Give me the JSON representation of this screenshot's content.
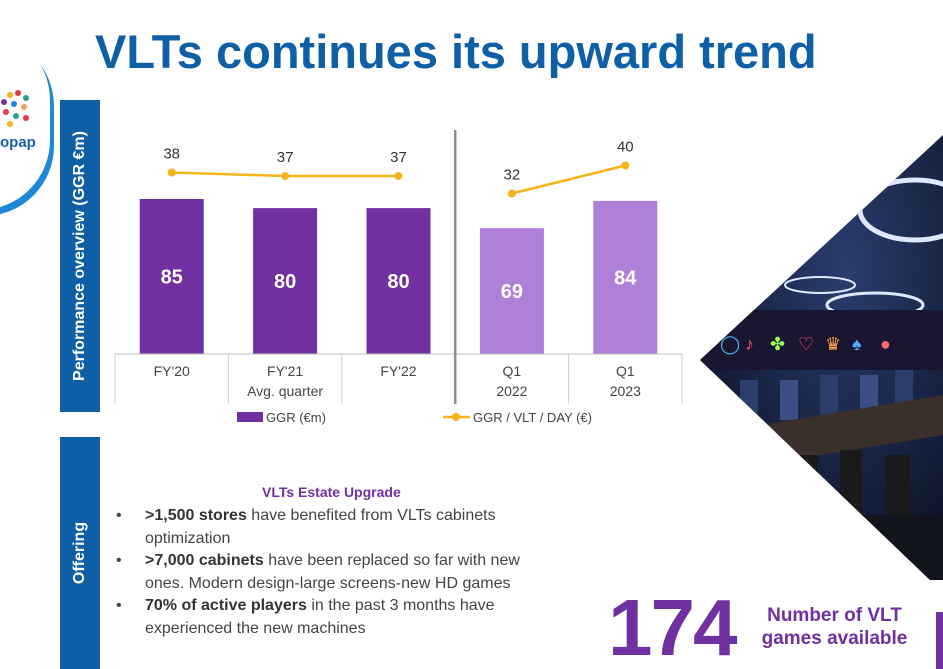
{
  "logo": {
    "text": "opap"
  },
  "title": "VLTs continues its upward trend",
  "sidebar": {
    "performance_label": "Performance overview (GGR €m)",
    "offering_label": "Offering"
  },
  "chart_data": {
    "type": "bar",
    "categories": [
      "FY'20",
      "FY'21",
      "FY'22",
      "Q1 2022",
      "Q1 2023"
    ],
    "category_lines": [
      [
        "FY'20"
      ],
      [
        "FY'21",
        "Avg. quarter"
      ],
      [
        "FY'22"
      ],
      [
        "Q1",
        "2022"
      ],
      [
        "Q1",
        "2023"
      ]
    ],
    "series": [
      {
        "name": "GGR (€m)",
        "type": "bar",
        "values": [
          85,
          80,
          80,
          69,
          84
        ],
        "colors": [
          "#7030a0",
          "#7030a0",
          "#7030a0",
          "#b07fd8",
          "#b07fd8"
        ]
      },
      {
        "name": "GGR / VLT / DAY (€)",
        "type": "line",
        "values": [
          38,
          37,
          37,
          32,
          40
        ],
        "color": "#f4b41a",
        "segments": [
          [
            0,
            2
          ],
          [
            3,
            4
          ]
        ]
      }
    ],
    "ylim": [
      0,
      85
    ],
    "divider_after_index": 2,
    "legend_position": "bottom"
  },
  "offering": {
    "title": "VLTs Estate Upgrade",
    "bullets": [
      {
        "bold": ">1,500 stores",
        "text": " have benefited from VLTs cabinets optimization"
      },
      {
        "bold": ">7,000 cabinets",
        "text": " have been replaced so far with new ones. Modern design-large screens-new HD games"
      },
      {
        "bold": "70% of active players",
        "text": " in the past 3 months have experienced the new machines"
      }
    ]
  },
  "highlight": {
    "number": "174",
    "caption": "Number of VLT games available"
  },
  "colors": {
    "brand_blue": "#0e5fa6",
    "purple": "#7030a0",
    "light_purple": "#b07fd8",
    "line_gold": "#f4b41a"
  },
  "photo": {
    "subject": "VLT gaming hall with neon lights"
  }
}
